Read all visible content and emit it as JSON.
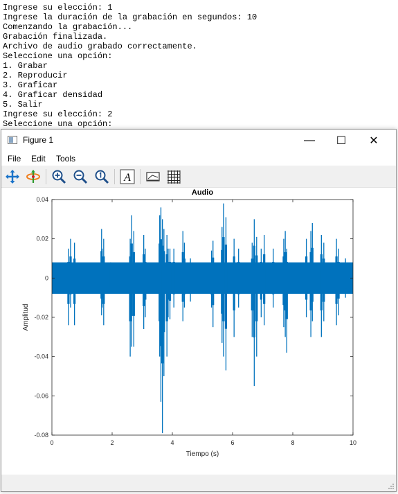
{
  "console": {
    "lines": [
      "5. Salir",
      "Ingrese su elección: 1",
      "Ingrese la duración de la grabación en segundos: 10",
      "Comenzando la grabación...",
      "Grabación finalizada.",
      "Archivo de audio grabado correctamente.",
      "Seleccione una opción:",
      "1. Grabar",
      "2. Reproducir",
      "3. Graficar",
      "4. Graficar densidad",
      "5. Salir",
      "Ingrese su elección: 2",
      "Seleccione una opción:"
    ]
  },
  "window": {
    "title": "Figure 1",
    "minimize": "—",
    "maximize": "☐",
    "close": "✕"
  },
  "menu": {
    "file": "File",
    "edit": "Edit",
    "tools": "Tools"
  },
  "toolbar": {
    "icons": [
      "pan-icon",
      "rotate-icon",
      "zoom-in-icon",
      "zoom-out-icon",
      "zoom-reset-icon",
      "text-icon",
      "legend-icon",
      "grid-icon"
    ]
  },
  "chart_data": {
    "type": "line",
    "title": "Audio",
    "xlabel": "Tiempo (s)",
    "ylabel": "Amplitud",
    "xlim": [
      0,
      10
    ],
    "ylim": [
      -0.08,
      0.04
    ],
    "xticks": [
      0,
      2,
      4,
      6,
      8,
      10
    ],
    "xtick_labels": [
      "0",
      "2",
      "4",
      "6",
      "8",
      "10"
    ],
    "yticks": [
      -0.08,
      -0.06,
      -0.04,
      -0.02,
      0,
      0.02,
      0.04
    ],
    "ytick_labels": [
      "-0.08",
      "-0.06",
      "-0.04",
      "-0.02",
      "0",
      "0.02",
      "0.04"
    ],
    "grid": false,
    "color": "#0072BD",
    "noise_band": [
      -0.008,
      0.008
    ],
    "bursts": [
      {
        "t": 0.55,
        "max": 0.015,
        "min": -0.024
      },
      {
        "t": 0.62,
        "max": 0.02,
        "min": -0.015
      },
      {
        "t": 0.75,
        "max": 0.018,
        "min": -0.024
      },
      {
        "t": 1.67,
        "max": 0.015,
        "min": -0.015
      },
      {
        "t": 1.72,
        "max": 0.02,
        "min": -0.024
      },
      {
        "t": 1.65,
        "max": 0.025,
        "min": -0.019
      },
      {
        "t": 1.95,
        "max": 0.008,
        "min": -0.008
      },
      {
        "t": 2.6,
        "max": 0.02,
        "min": -0.04
      },
      {
        "t": 2.65,
        "max": 0.032,
        "min": -0.035
      },
      {
        "t": 2.72,
        "max": 0.024,
        "min": -0.035
      },
      {
        "t": 3.05,
        "max": 0.022,
        "min": -0.026
      },
      {
        "t": 3.1,
        "max": 0.015,
        "min": -0.02
      },
      {
        "t": 3.58,
        "max": 0.032,
        "min": -0.04
      },
      {
        "t": 3.62,
        "max": 0.036,
        "min": -0.063
      },
      {
        "t": 3.67,
        "max": 0.03,
        "min": -0.079
      },
      {
        "t": 3.72,
        "max": 0.025,
        "min": -0.05
      },
      {
        "t": 3.82,
        "max": 0.022,
        "min": -0.04
      },
      {
        "t": 3.92,
        "max": 0.015,
        "min": -0.021
      },
      {
        "t": 3.86,
        "max": 0.015,
        "min": -0.02
      },
      {
        "t": 4.05,
        "max": 0.015,
        "min": -0.015
      },
      {
        "t": 4.35,
        "max": 0.024,
        "min": -0.022
      },
      {
        "t": 4.4,
        "max": 0.018,
        "min": -0.015
      },
      {
        "t": 4.6,
        "max": 0.01,
        "min": -0.012
      },
      {
        "t": 5.3,
        "max": 0.014,
        "min": -0.015
      },
      {
        "t": 5.35,
        "max": 0.019,
        "min": -0.025
      },
      {
        "t": 5.65,
        "max": 0.026,
        "min": -0.033
      },
      {
        "t": 5.7,
        "max": 0.038,
        "min": -0.04
      },
      {
        "t": 5.78,
        "max": 0.031,
        "min": -0.047
      },
      {
        "t": 6.05,
        "max": 0.02,
        "min": -0.03
      },
      {
        "t": 6.2,
        "max": 0.015,
        "min": -0.015
      },
      {
        "t": 6.65,
        "max": 0.018,
        "min": -0.03
      },
      {
        "t": 6.72,
        "max": 0.03,
        "min": -0.055
      },
      {
        "t": 6.8,
        "max": 0.021,
        "min": -0.04
      },
      {
        "t": 6.95,
        "max": 0.015,
        "min": -0.02
      },
      {
        "t": 7.05,
        "max": 0.022,
        "min": -0.024
      },
      {
        "t": 7.35,
        "max": 0.015,
        "min": -0.015
      },
      {
        "t": 7.7,
        "max": 0.02,
        "min": -0.025
      },
      {
        "t": 7.75,
        "max": 0.024,
        "min": -0.03
      },
      {
        "t": 7.8,
        "max": 0.015,
        "min": -0.038
      },
      {
        "t": 8.45,
        "max": 0.02,
        "min": -0.02
      },
      {
        "t": 8.6,
        "max": 0.024,
        "min": -0.03
      },
      {
        "t": 8.65,
        "max": 0.028,
        "min": -0.022
      },
      {
        "t": 8.95,
        "max": 0.022,
        "min": -0.03
      },
      {
        "t": 9.03,
        "max": 0.018,
        "min": -0.022
      },
      {
        "t": 9.45,
        "max": 0.02,
        "min": -0.024
      },
      {
        "t": 9.52,
        "max": 0.015,
        "min": -0.019
      },
      {
        "t": 9.75,
        "max": 0.01,
        "min": -0.01
      }
    ]
  }
}
